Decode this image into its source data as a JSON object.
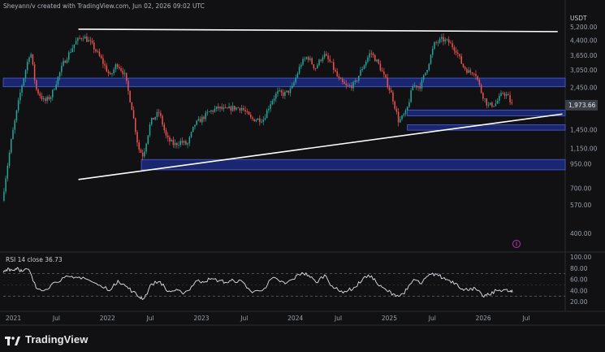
{
  "attribution": "Sheyann/v created with TradingView.com, Jun 02, 2026 09:02 UTC",
  "brand": "TradingView",
  "colors": {
    "background": "#111113",
    "up": "#26a69a",
    "down": "#ef5350",
    "zone_fill": "#1c2a80",
    "zone_border": "#4a5fd6",
    "trendline": "#ffffff",
    "rsi_line": "#dfe3ea",
    "price_tag": "#3a3e46"
  },
  "chart_data": [
    {
      "type": "candlestick",
      "title": "",
      "currency": "USDT",
      "yscale": "log",
      "ylim": [
        330,
        6300
      ],
      "y_ticks": [
        400,
        570,
        700,
        950,
        1150,
        1450,
        2450,
        3050,
        3650,
        4400,
        5200
      ],
      "y_tick_labels": [
        "400.00",
        "570.00",
        "700.00",
        "950.00",
        "1,150.00",
        "1,450.00",
        "2,450.00",
        "3,050.00",
        "3,650.00",
        "4,400.00",
        "5,200.00"
      ],
      "x_tick_labels": [
        "2021",
        "Jul",
        "2022",
        "Jul",
        "2023",
        "Jul",
        "2024",
        "Jul",
        "2025",
        "Jul",
        "2026",
        "Jul"
      ],
      "x_tick_times": [
        2021.0,
        2021.5,
        2022.0,
        2022.5,
        2023.0,
        2023.5,
        2024.0,
        2024.5,
        2025.0,
        2025.5,
        2026.0,
        2026.5
      ],
      "last_price_label": "1,973.66",
      "last_price_sub": "",
      "last_price": 1973.66,
      "price_path": [
        [
          2021.0,
          600
        ],
        [
          2021.1,
          1300
        ],
        [
          2021.2,
          2400
        ],
        [
          2021.3,
          3900
        ],
        [
          2021.36,
          2400
        ],
        [
          2021.45,
          2050
        ],
        [
          2021.52,
          2200
        ],
        [
          2021.65,
          3300
        ],
        [
          2021.78,
          4300
        ],
        [
          2021.86,
          4650
        ],
        [
          2021.95,
          4200
        ],
        [
          2022.05,
          3500
        ],
        [
          2022.15,
          2800
        ],
        [
          2022.22,
          3300
        ],
        [
          2022.3,
          2900
        ],
        [
          2022.38,
          1900
        ],
        [
          2022.45,
          1150
        ],
        [
          2022.5,
          1050
        ],
        [
          2022.58,
          1600
        ],
        [
          2022.67,
          1800
        ],
        [
          2022.75,
          1300
        ],
        [
          2022.83,
          1200
        ],
        [
          2022.9,
          1250
        ],
        [
          2022.97,
          1200
        ],
        [
          2023.05,
          1550
        ],
        [
          2023.12,
          1650
        ],
        [
          2023.2,
          1800
        ],
        [
          2023.3,
          1900
        ],
        [
          2023.38,
          1850
        ],
        [
          2023.45,
          1900
        ],
        [
          2023.55,
          1900
        ],
        [
          2023.65,
          1650
        ],
        [
          2023.78,
          1650
        ],
        [
          2023.86,
          2050
        ],
        [
          2023.93,
          2300
        ],
        [
          2024.0,
          2250
        ],
        [
          2024.08,
          2400
        ],
        [
          2024.18,
          3300
        ],
        [
          2024.25,
          3600
        ],
        [
          2024.33,
          3100
        ],
        [
          2024.42,
          3700
        ],
        [
          2024.5,
          3300
        ],
        [
          2024.58,
          2700
        ],
        [
          2024.67,
          2450
        ],
        [
          2024.75,
          2550
        ],
        [
          2024.83,
          3100
        ],
        [
          2024.92,
          3800
        ],
        [
          2025.0,
          3300
        ],
        [
          2025.08,
          2700
        ],
        [
          2025.15,
          2200
        ],
        [
          2025.22,
          1600
        ],
        [
          2025.3,
          1800
        ],
        [
          2025.37,
          2500
        ],
        [
          2025.45,
          2500
        ],
        [
          2025.52,
          3100
        ],
        [
          2025.6,
          4200
        ],
        [
          2025.68,
          4450
        ],
        [
          2025.75,
          4300
        ],
        [
          2025.83,
          3900
        ],
        [
          2025.9,
          3200
        ],
        [
          2025.97,
          2950
        ],
        [
          2026.03,
          3000
        ],
        [
          2026.1,
          2300
        ],
        [
          2026.17,
          1950
        ],
        [
          2026.25,
          2000
        ],
        [
          2026.33,
          2300
        ],
        [
          2026.38,
          2200
        ],
        [
          2026.42,
          1973.66
        ]
      ],
      "zones": [
        {
          "from": 2021.0,
          "to": 2026.98,
          "low": 2470,
          "high": 2750
        },
        {
          "from": 2025.3,
          "to": 2026.98,
          "low": 1720,
          "high": 1850
        },
        {
          "from": 2025.3,
          "to": 2026.98,
          "low": 1440,
          "high": 1540
        },
        {
          "from": 2022.47,
          "to": 2026.98,
          "low": 880,
          "high": 1000
        }
      ],
      "trendlines": [
        {
          "t1": 2021.8,
          "p1": 5050,
          "t2": 2026.9,
          "p2": 4900
        },
        {
          "t1": 2021.8,
          "p1": 780,
          "t2": 2026.95,
          "p2": 1760
        }
      ]
    },
    {
      "type": "line",
      "title": "RSI 14 close",
      "header_label": "RSI 14 close 36.73",
      "value_label": "36.73",
      "ylim": [
        10,
        100
      ],
      "y_ticks": [
        20,
        40,
        60,
        80,
        100
      ],
      "y_tick_labels": [
        "20.00",
        "40.00",
        "60.00",
        "80.00",
        "100.00"
      ],
      "bands": [
        30,
        70
      ],
      "points": [
        [
          2021.0,
          72
        ],
        [
          2021.05,
          80
        ],
        [
          2021.1,
          76
        ],
        [
          2021.15,
          81
        ],
        [
          2021.2,
          74
        ],
        [
          2021.27,
          78
        ],
        [
          2021.35,
          44
        ],
        [
          2021.45,
          42
        ],
        [
          2021.55,
          55
        ],
        [
          2021.65,
          63
        ],
        [
          2021.75,
          62
        ],
        [
          2021.85,
          64
        ],
        [
          2021.95,
          55
        ],
        [
          2022.05,
          46
        ],
        [
          2022.15,
          42
        ],
        [
          2022.22,
          58
        ],
        [
          2022.3,
          48
        ],
        [
          2022.38,
          38
        ],
        [
          2022.45,
          28
        ],
        [
          2022.5,
          26
        ],
        [
          2022.58,
          52
        ],
        [
          2022.67,
          56
        ],
        [
          2022.75,
          38
        ],
        [
          2022.83,
          40
        ],
        [
          2022.9,
          36
        ],
        [
          2022.97,
          40
        ],
        [
          2023.05,
          57
        ],
        [
          2023.12,
          56
        ],
        [
          2023.2,
          60
        ],
        [
          2023.3,
          58
        ],
        [
          2023.38,
          54
        ],
        [
          2023.45,
          58
        ],
        [
          2023.55,
          55
        ],
        [
          2023.65,
          36
        ],
        [
          2023.78,
          44
        ],
        [
          2023.86,
          62
        ],
        [
          2023.93,
          58
        ],
        [
          2024.0,
          52
        ],
        [
          2024.08,
          60
        ],
        [
          2024.18,
          72
        ],
        [
          2024.25,
          67
        ],
        [
          2024.33,
          54
        ],
        [
          2024.42,
          68
        ],
        [
          2024.5,
          48
        ],
        [
          2024.58,
          38
        ],
        [
          2024.67,
          40
        ],
        [
          2024.75,
          46
        ],
        [
          2024.83,
          62
        ],
        [
          2024.92,
          66
        ],
        [
          2025.0,
          48
        ],
        [
          2025.08,
          40
        ],
        [
          2025.15,
          34
        ],
        [
          2025.22,
          30
        ],
        [
          2025.3,
          42
        ],
        [
          2025.37,
          60
        ],
        [
          2025.45,
          52
        ],
        [
          2025.52,
          66
        ],
        [
          2025.6,
          70
        ],
        [
          2025.68,
          62
        ],
        [
          2025.75,
          58
        ],
        [
          2025.83,
          52
        ],
        [
          2025.9,
          40
        ],
        [
          2025.97,
          44
        ],
        [
          2026.03,
          42
        ],
        [
          2026.1,
          30
        ],
        [
          2026.17,
          32
        ],
        [
          2026.25,
          40
        ],
        [
          2026.33,
          42
        ],
        [
          2026.38,
          38
        ],
        [
          2026.42,
          36.73
        ]
      ]
    }
  ]
}
